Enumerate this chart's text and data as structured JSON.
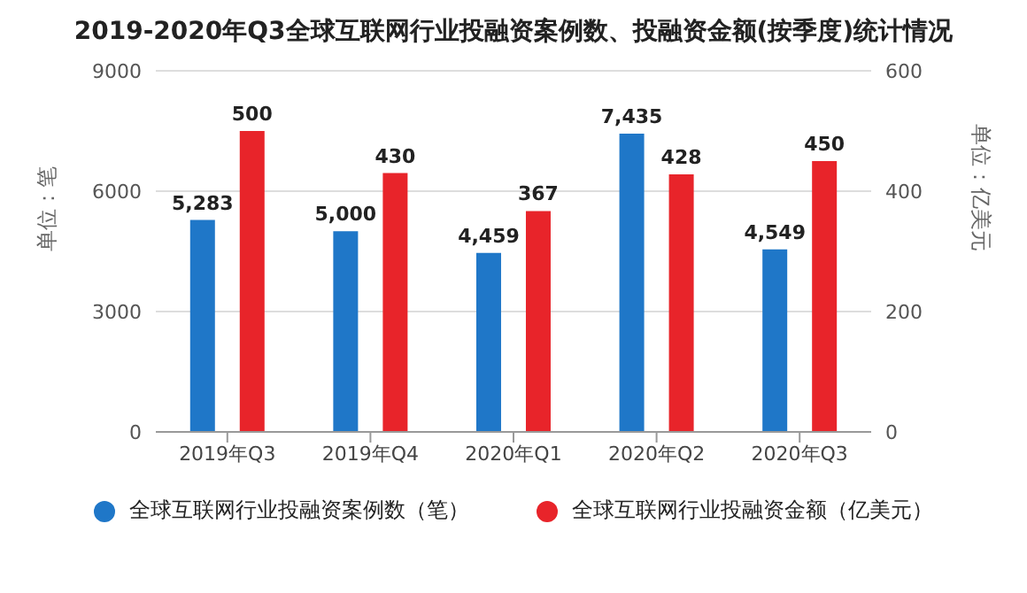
{
  "chart_data": {
    "type": "bar",
    "title": "2019-2020年Q3全球互联网行业投融资案例数、投融资金额(按季度)统计情况",
    "ylabel": "单位：笔",
    "y2label": "单位：亿美元",
    "categories": [
      "2019年Q3",
      "2019年Q4",
      "2020年Q1",
      "2020年Q2",
      "2020年Q3"
    ],
    "series": [
      {
        "name": "全球互联网行业投融资案例数（笔）",
        "color": "#1f77c8",
        "values": [
          5283,
          5000,
          4459,
          7435,
          4549
        ],
        "value_labels": [
          "5,283",
          "5,000",
          "4,459",
          "7,435",
          "4,549"
        ]
      },
      {
        "name": "全球互联网行业投融资金额（亿美元）",
        "color": "#e8242a",
        "axis": "y2",
        "values": [
          500,
          430,
          367,
          428,
          450
        ],
        "value_labels": [
          "500",
          "430",
          "367",
          "428",
          "450"
        ]
      }
    ],
    "ylim": [
      0,
      9000
    ],
    "yticks": [
      0,
      3000,
      6000,
      9000
    ],
    "y2lim": [
      0,
      600
    ],
    "y2ticks": [
      0,
      200,
      400,
      600
    ],
    "grid": "y",
    "legend": "bottom"
  }
}
